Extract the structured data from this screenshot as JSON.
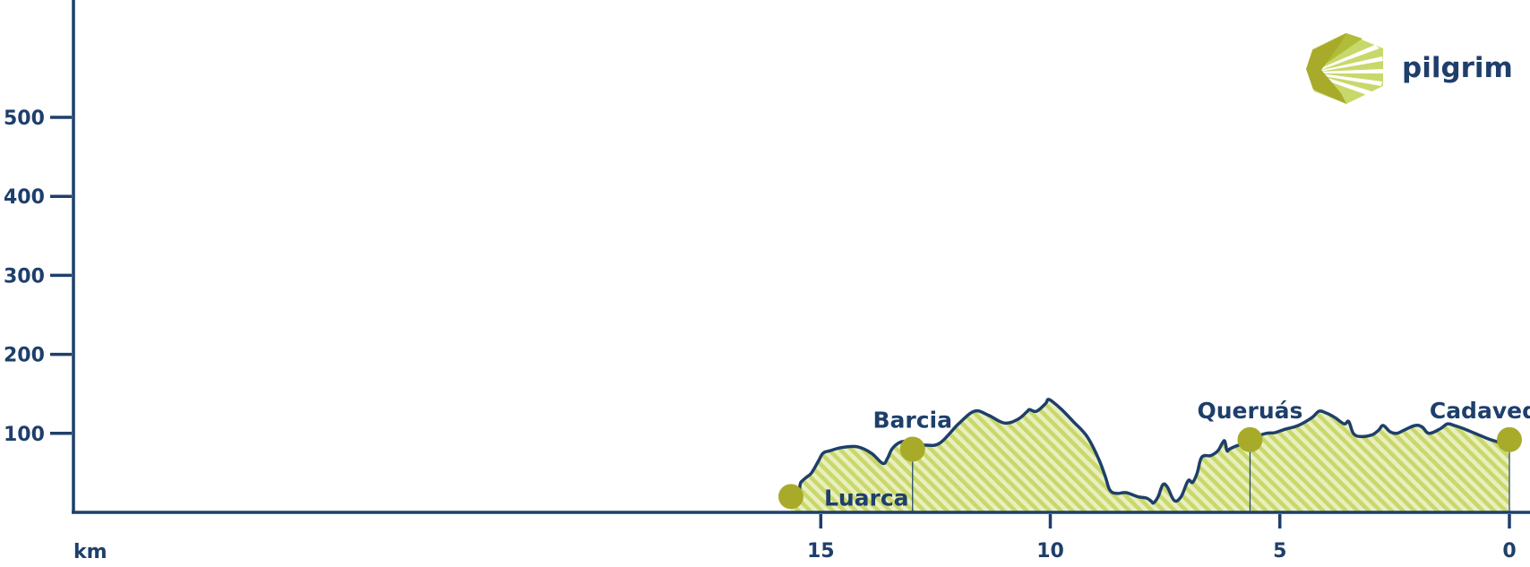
{
  "brand": {
    "name": "pilgrim",
    "colors": {
      "primary": "#1e3f6b",
      "accent": "#a8ab2a",
      "fill": "#c9d86a",
      "background": "#ffffff"
    },
    "logo_icon": "scallop-shell-icon"
  },
  "chart_data": {
    "type": "area",
    "title": "",
    "xlabel": "km",
    "ylabel": "",
    "x_reversed": true,
    "xlim": [
      15.8,
      0
    ],
    "ylim": [
      0,
      640
    ],
    "x_ticks": [
      15,
      10,
      5,
      0
    ],
    "y_ticks": [
      100,
      200,
      300,
      400,
      500
    ],
    "grid": false,
    "legend": "none",
    "series": [
      {
        "name": "",
        "x": [
          15.65,
          15.5,
          15.45,
          15.4,
          15.3,
          15.2,
          15.05,
          14.95,
          14.8,
          14.55,
          14.2,
          13.9,
          13.65,
          13.55,
          13.45,
          13.3,
          13.15,
          13.0,
          12.7,
          12.4,
          12.0,
          11.65,
          11.35,
          11.0,
          10.7,
          10.5,
          10.45,
          10.3,
          10.1,
          10.05,
          9.95,
          9.75,
          9.5,
          9.2,
          8.95,
          8.8,
          8.7,
          8.55,
          8.35,
          8.1,
          7.9,
          7.8,
          7.75,
          7.65,
          7.55,
          7.45,
          7.3,
          7.15,
          7.0,
          6.9,
          6.8,
          6.7,
          6.5,
          6.35,
          6.25,
          6.2,
          6.15,
          6.1,
          5.95,
          5.75,
          5.6,
          5.45,
          5.3,
          5.1,
          4.9,
          4.6,
          4.3,
          4.15,
          4.0,
          3.8,
          3.6,
          3.5,
          3.4,
          3.25,
          3.0,
          2.85,
          2.75,
          2.6,
          2.45,
          2.3,
          2.05,
          1.9,
          1.75,
          1.5,
          1.35,
          1.2,
          1.0,
          0.75,
          0.5,
          0.3,
          0.15,
          0
        ],
        "y": [
          12,
          14,
          35,
          40,
          45,
          50,
          65,
          75,
          78,
          82,
          83,
          75,
          62,
          68,
          80,
          88,
          90,
          88,
          85,
          88,
          112,
          128,
          123,
          113,
          118,
          128,
          130,
          128,
          138,
          143,
          140,
          130,
          115,
          96,
          68,
          45,
          28,
          24,
          25,
          20,
          18,
          14,
          12,
          20,
          35,
          32,
          15,
          20,
          40,
          38,
          50,
          70,
          72,
          78,
          88,
          90,
          78,
          80,
          84,
          88,
          92,
          97,
          100,
          101,
          105,
          110,
          120,
          128,
          126,
          120,
          112,
          115,
          100,
          96,
          98,
          104,
          110,
          102,
          100,
          104,
          110,
          108,
          100,
          106,
          112,
          110,
          106,
          100,
          94,
          90,
          88,
          92
        ]
      }
    ],
    "waypoints": [
      {
        "name": "Luarca",
        "x": 15.65,
        "y": 20,
        "label_pos": "right"
      },
      {
        "name": "Barcia",
        "x": 13.0,
        "y": 80,
        "label_pos": "above"
      },
      {
        "name": "Queruás",
        "x": 5.65,
        "y": 92,
        "label_pos": "above"
      },
      {
        "name": "Cadavedo",
        "x": 0.0,
        "y": 92,
        "label_pos": "above-left"
      }
    ]
  }
}
